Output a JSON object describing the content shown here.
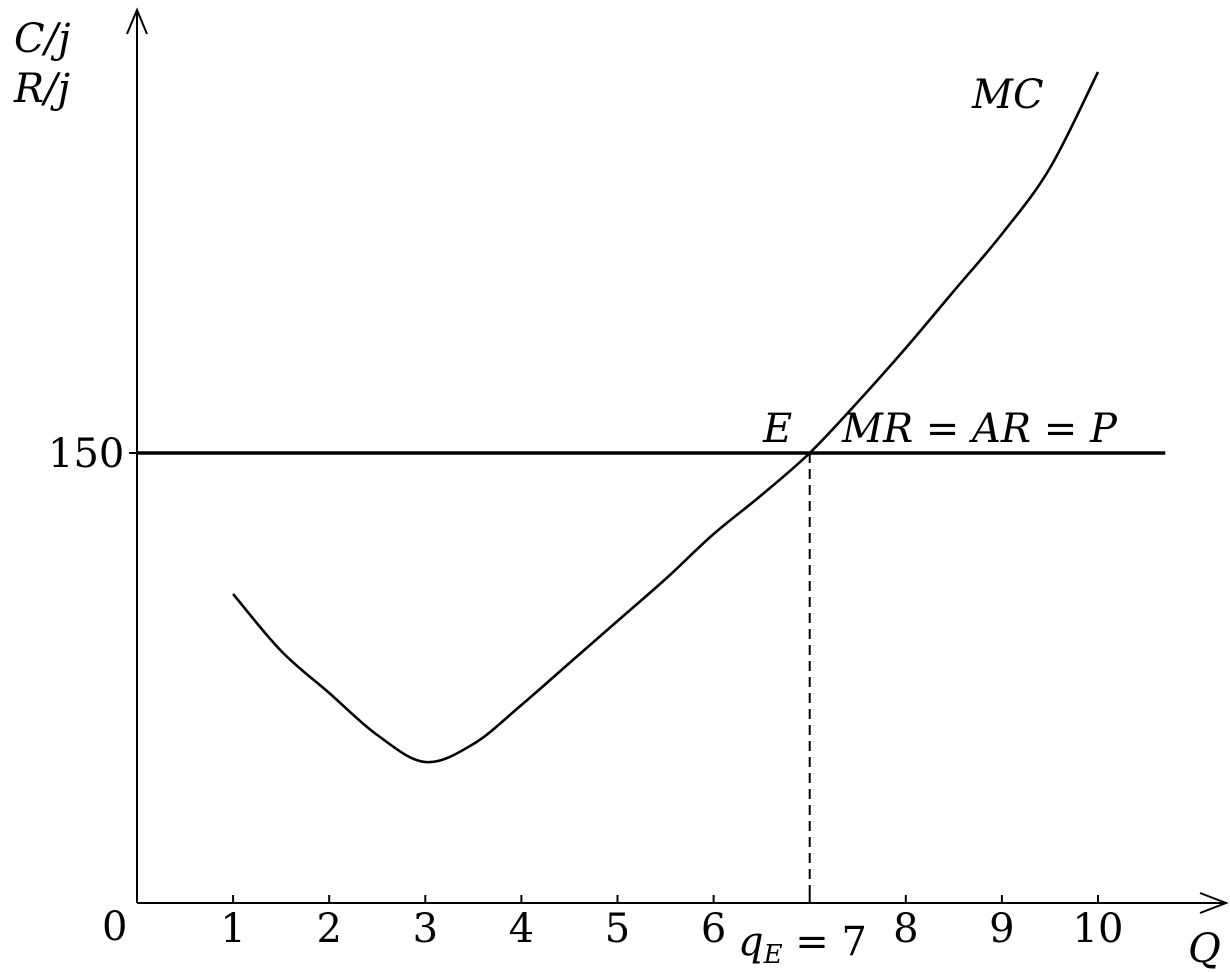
{
  "chart_data": {
    "type": "line",
    "ylabel_line1": "C/j",
    "ylabel_line2": "R/j",
    "xlabel": "Q",
    "origin_label": "0",
    "x_ticks": [
      1,
      2,
      3,
      4,
      5,
      6,
      8,
      9,
      10
    ],
    "x_tick_labels": [
      "1",
      "2",
      "3",
      "4",
      "5",
      "6",
      "8",
      "9",
      "10"
    ],
    "y_tick_value": 150,
    "y_tick_label": "150",
    "xlim": [
      0,
      11.1
    ],
    "ylim": [
      0,
      298
    ],
    "series": [
      {
        "name": "MC",
        "x": [
          1,
          1.5,
          2,
          2.5,
          3,
          3.5,
          4,
          4.5,
          5,
          5.5,
          6,
          6.5,
          7,
          7.5,
          8,
          8.5,
          9,
          9.5,
          10
        ],
        "y": [
          103,
          84,
          70,
          56,
          47,
          53,
          66,
          80,
          94,
          108,
          123,
          136,
          150,
          167,
          185,
          204,
          223,
          245,
          277
        ]
      },
      {
        "name": "MR = AR = P",
        "x": [
          0,
          10.7
        ],
        "y": [
          150,
          150
        ]
      }
    ],
    "equilibrium": {
      "label": "E",
      "x": 7,
      "y": 150
    },
    "qE_label": "q",
    "qE_sub": "E",
    "qE_value": " = 7"
  }
}
